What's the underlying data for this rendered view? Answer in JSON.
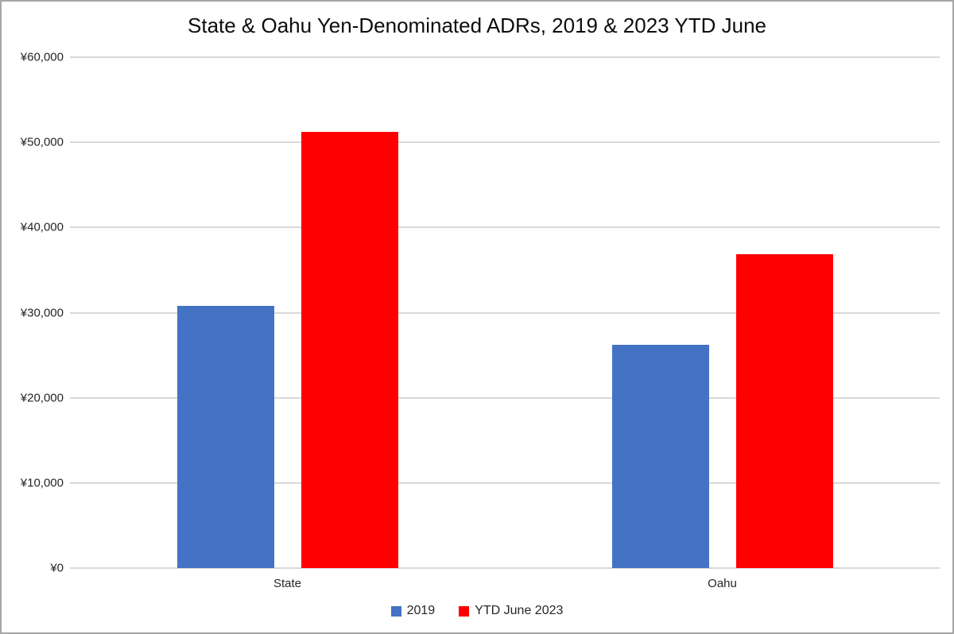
{
  "page": {
    "background": "#ffffff",
    "frame_border_color": "#a6a6a6"
  },
  "chart_data": {
    "type": "bar",
    "title": "State & Oahu Yen-Denominated ADRs, 2019 & 2023 YTD June",
    "categories": [
      "State",
      "Oahu"
    ],
    "series": [
      {
        "name": "2019",
        "color": "#4472C4",
        "values": [
          30800,
          26200
        ]
      },
      {
        "name": "YTD June 2023",
        "color": "#FF0000",
        "values": [
          51200,
          36900
        ]
      }
    ],
    "y_axis": {
      "min": 0,
      "max": 60000,
      "tick_interval": 10000,
      "tick_labels": [
        "¥0",
        "¥10,000",
        "¥20,000",
        "¥30,000",
        "¥40,000",
        "¥50,000",
        "¥60,000"
      ],
      "currency_prefix": "¥"
    },
    "grid": true,
    "gridline_color": "#D9D9D9",
    "legend_position": "bottom",
    "axis_text_color": "#262626",
    "title_color": "#0d0d0d"
  }
}
